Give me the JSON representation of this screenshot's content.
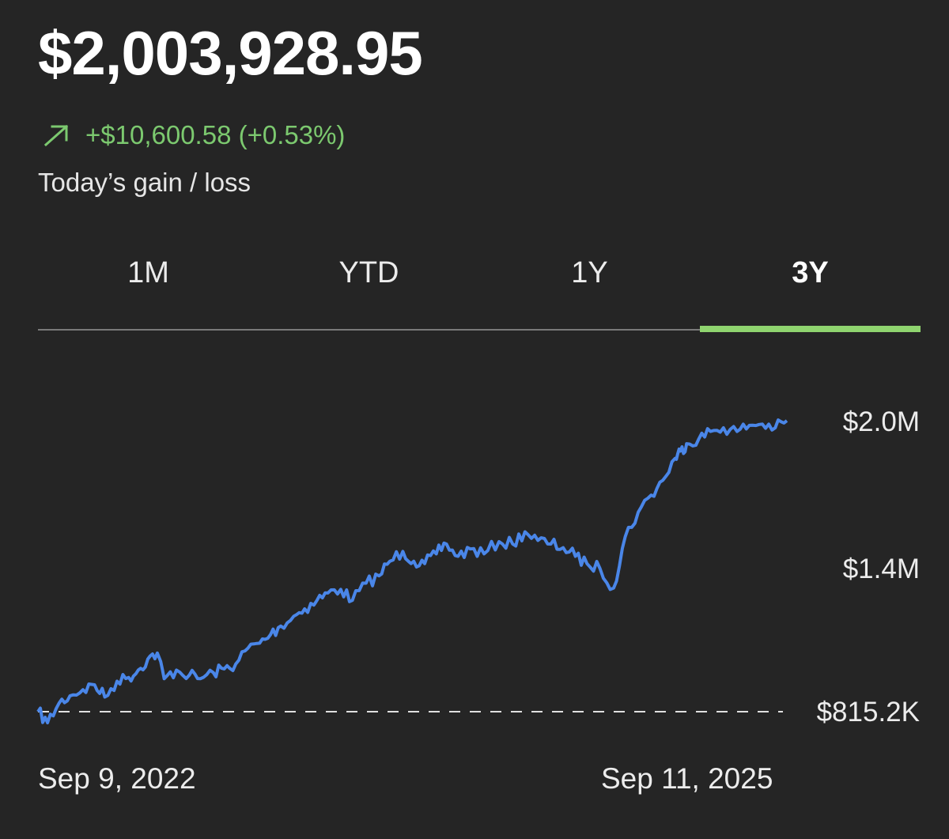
{
  "balance": "$2,003,928.95",
  "today_change": {
    "direction_icon": "arrow-up-right-icon",
    "text": "+$10,600.58 (+0.53%)",
    "label": "Today’s gain / loss"
  },
  "tabs": [
    {
      "label": "1M",
      "active": false
    },
    {
      "label": "YTD",
      "active": false
    },
    {
      "label": "1Y",
      "active": false
    },
    {
      "label": "3Y",
      "active": true
    }
  ],
  "colors": {
    "background": "#252525",
    "positive": "#7cc96f",
    "line": "#4a86e8",
    "tab_indicator": "#8fd46f"
  },
  "chart_data": {
    "type": "line",
    "y_labels": [
      "$2.0M",
      "$1.4M",
      "$815.2K"
    ],
    "baseline_label": "$815.2K",
    "x_labels": [
      "Sep 9, 2022",
      "Sep 11, 2025"
    ],
    "x_range": [
      "2022-09-09",
      "2025-09-11"
    ],
    "ylim": [
      700000,
      2050000
    ],
    "series": [
      {
        "x": [
          "2022-09-09",
          "2022-09-23",
          "2022-10-10",
          "2022-10-26",
          "2022-11-14",
          "2022-12-01",
          "2022-12-16",
          "2023-01-03",
          "2023-01-20",
          "2023-02-03",
          "2023-02-17",
          "2023-03-03",
          "2023-03-13",
          "2023-03-31",
          "2023-04-19",
          "2023-05-05",
          "2023-05-24",
          "2023-06-09",
          "2023-06-26",
          "2023-07-14",
          "2023-07-31",
          "2023-08-16",
          "2023-08-31",
          "2023-09-19",
          "2023-10-05",
          "2023-10-23",
          "2023-11-08",
          "2023-11-27",
          "2023-12-14",
          "2024-01-03",
          "2024-01-22",
          "2024-02-07",
          "2024-02-26",
          "2024-03-13",
          "2024-03-29",
          "2024-04-15",
          "2024-04-30",
          "2024-05-17",
          "2024-06-04",
          "2024-06-24",
          "2024-07-16",
          "2024-08-05",
          "2024-08-23",
          "2024-09-11",
          "2024-09-30",
          "2024-10-18",
          "2024-11-05",
          "2024-11-22",
          "2024-12-11",
          "2024-12-31",
          "2025-01-17",
          "2025-02-05",
          "2025-02-24",
          "2025-03-13",
          "2025-03-31",
          "2025-04-08",
          "2025-04-17",
          "2025-05-05",
          "2025-05-22",
          "2025-06-10",
          "2025-06-30",
          "2025-07-18",
          "2025-08-06",
          "2025-08-25",
          "2025-09-11"
        ],
        "y": [
          815200,
          770000,
          850000,
          880000,
          905000,
          925000,
          875000,
          940000,
          955000,
          985000,
          1030000,
          1055000,
          950000,
          985000,
          965000,
          950000,
          975000,
          990000,
          1010000,
          1075000,
          1095000,
          1130000,
          1165000,
          1205000,
          1235000,
          1270000,
          1300000,
          1315000,
          1270000,
          1340000,
          1370000,
          1430000,
          1470000,
          1430000,
          1420000,
          1460000,
          1500000,
          1450000,
          1480000,
          1460000,
          1510000,
          1500000,
          1550000,
          1515000,
          1500000,
          1485000,
          1450000,
          1420000,
          1400000,
          1320000,
          1530000,
          1630000,
          1700000,
          1760000,
          1850000,
          1880000,
          1910000,
          1930000,
          1960000,
          1975000,
          1960000,
          1985000,
          1990000,
          1975000,
          2003929
        ]
      }
    ],
    "grid": false
  }
}
